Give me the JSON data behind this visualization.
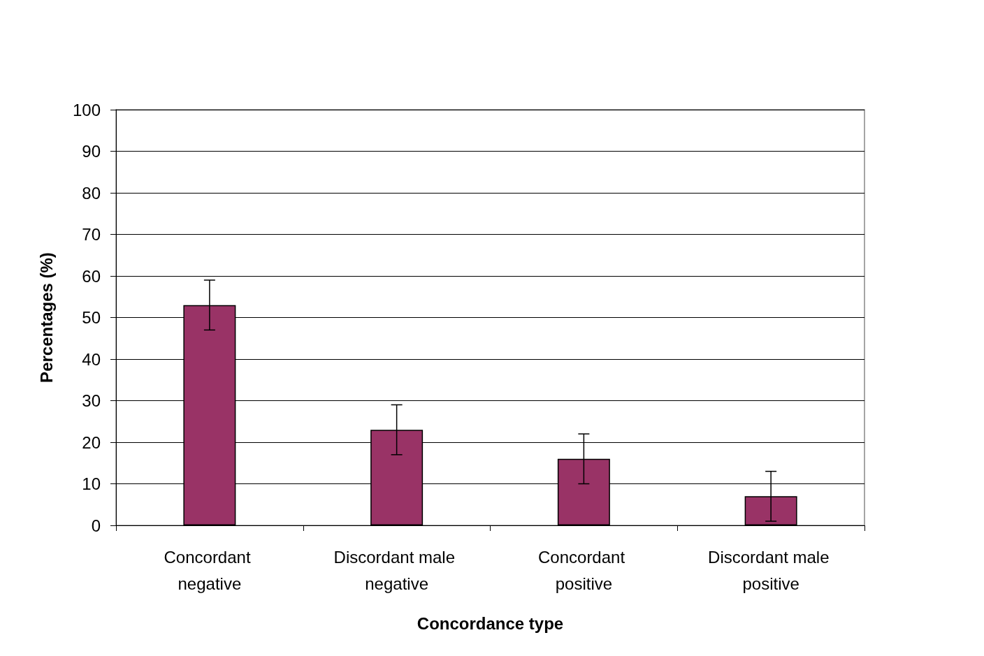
{
  "chart_data": {
    "type": "bar",
    "xlabel": "Concordance type",
    "ylabel": "Percentages (%)",
    "categories": [
      "Concordant negative",
      "Discordant male negative",
      "Concordant positive",
      "Discordant male positive"
    ],
    "values": [
      53,
      23,
      16,
      7
    ],
    "errors": [
      6,
      6,
      6,
      6
    ],
    "color": "#993366",
    "ylim": [
      0,
      100
    ],
    "yticks": [
      0,
      10,
      20,
      30,
      40,
      50,
      60,
      70,
      80,
      90,
      100
    ],
    "grid": "y"
  }
}
